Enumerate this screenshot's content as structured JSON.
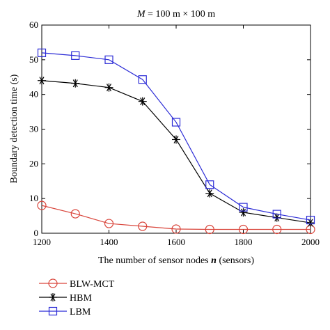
{
  "chart_data": {
    "type": "line",
    "title_var": "M",
    "title_rest": " = 100 m × 100 m",
    "xlabel_text": "The number of sensor nodes ",
    "xlabel_var": "n",
    "xlabel_unit": " (sensors)",
    "ylabel": "Boundary detection time (s)",
    "x": [
      1200,
      1300,
      1400,
      1500,
      1600,
      1700,
      1800,
      1900,
      2000
    ],
    "xlim": [
      1200,
      2000
    ],
    "ylim": [
      0,
      60
    ],
    "xticks": [
      1200,
      1400,
      1600,
      1800,
      2000
    ],
    "yticks": [
      0,
      10,
      20,
      30,
      40,
      50,
      60
    ],
    "grid": false,
    "legend_position": "bottom-left",
    "series": [
      {
        "name": "BLW-MCT",
        "marker": "circle",
        "color": "#d9443a",
        "values": [
          8,
          5.6,
          2.8,
          2,
          1.2,
          1.1,
          1.1,
          1.1,
          1.1
        ]
      },
      {
        "name": "HBM",
        "marker": "asterisk",
        "color": "#000000",
        "values": [
          44,
          43.2,
          42,
          38,
          27,
          11.5,
          6,
          4.5,
          3
        ]
      },
      {
        "name": "LBM",
        "marker": "square",
        "color": "#2b2bd6",
        "values": [
          52,
          51.2,
          50,
          44.3,
          32,
          14,
          7.5,
          5.5,
          3.8
        ]
      }
    ]
  }
}
